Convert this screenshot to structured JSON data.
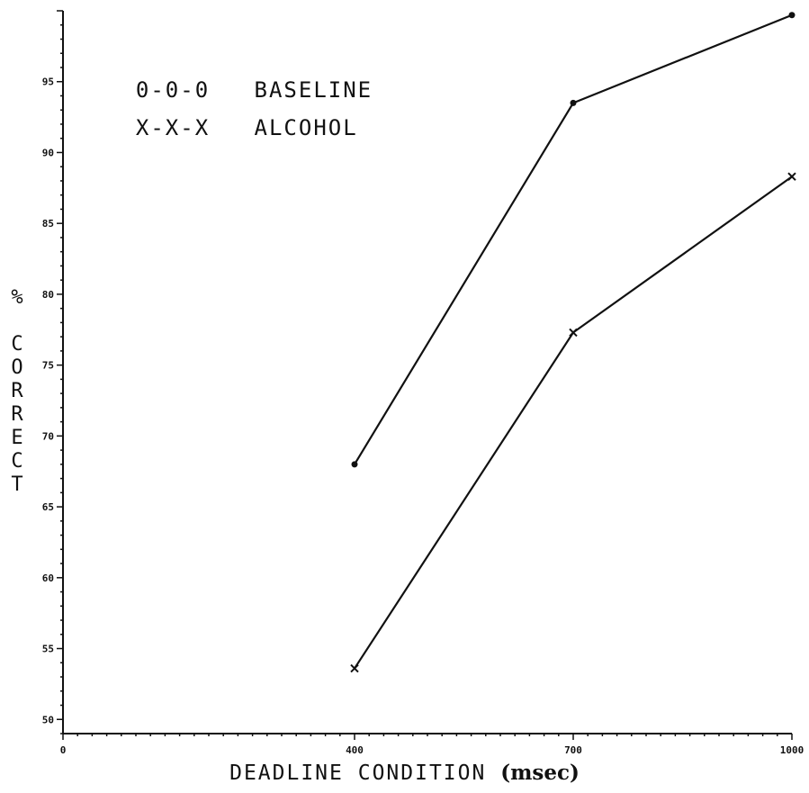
{
  "chart_data": {
    "type": "line",
    "xlabel": "DEADLINE CONDITION",
    "xlabel_unit": "(msec)",
    "ylabel": "% CORRECT",
    "x_ticks": [
      0,
      400,
      700,
      1000
    ],
    "y_tick_labels": [
      "50",
      "55",
      "60",
      "65",
      "70",
      "75",
      "80",
      "85",
      "90",
      "95"
    ],
    "xlim": [
      0,
      1000
    ],
    "ylim": [
      49,
      100
    ],
    "series": [
      {
        "name": "BASELINE",
        "legend_symbol": "0-0-0",
        "marker": "dot",
        "x": [
          400,
          700,
          1000
        ],
        "y": [
          68.0,
          93.5,
          99.7
        ]
      },
      {
        "name": "ALCOHOL",
        "legend_symbol": "X-X-X",
        "marker": "x",
        "x": [
          400,
          700,
          1000
        ],
        "y": [
          53.6,
          77.3,
          88.3
        ]
      }
    ],
    "grid": false,
    "legend_position": "top-left"
  }
}
